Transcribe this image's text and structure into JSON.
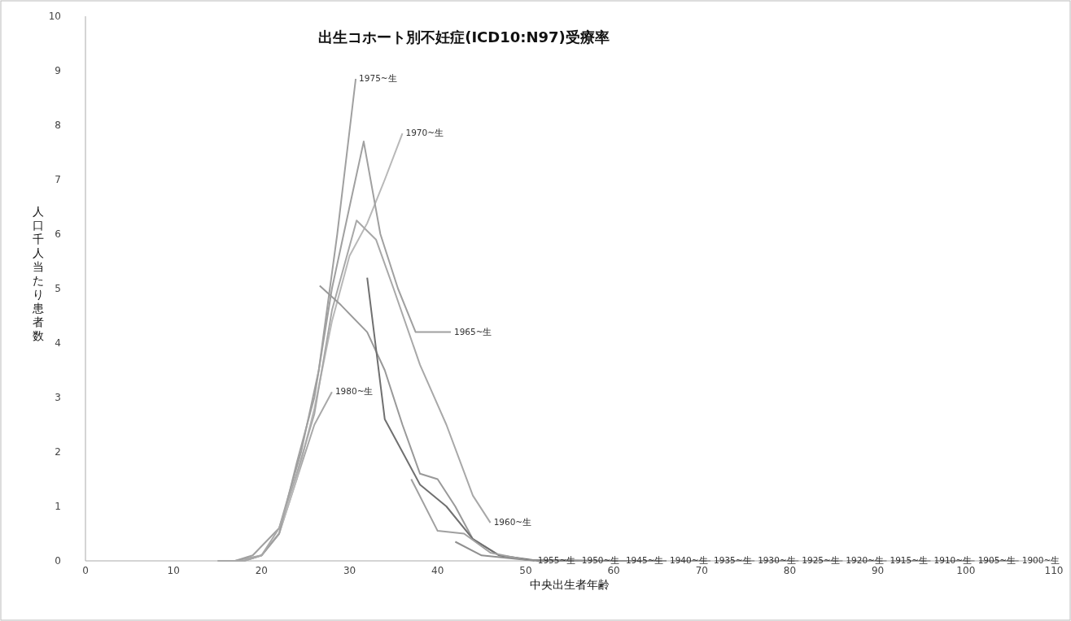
{
  "chart_data": {
    "type": "line",
    "title": "出生コホート別不妊症(ICD10:N97)受療率",
    "xlabel": "中央出生者年齢",
    "ylabel": "人口千人当たり患者数",
    "xlim": [
      0,
      110
    ],
    "xticks": [
      0,
      10,
      20,
      30,
      40,
      50,
      60,
      70,
      80,
      90,
      100,
      110
    ],
    "ylim": [
      0,
      10
    ],
    "yticks": [
      0,
      1,
      2,
      3,
      4,
      5,
      6,
      7,
      8,
      9,
      10
    ],
    "grid": false,
    "legend": false,
    "series": [
      {
        "name": "1980~生",
        "color": "#a8a8a8",
        "x": [
          17,
          20,
          22,
          24,
          26,
          28
        ],
        "values": [
          0,
          0.1,
          0.5,
          1.5,
          2.5,
          3.1
        ]
      },
      {
        "name": "1975~生",
        "color": "#a0a0a0",
        "x": [
          17,
          19,
          22,
          24.5,
          26.5,
          28.6,
          30.7
        ],
        "values": [
          0,
          0.1,
          0.6,
          2,
          3.5,
          6,
          8.85
        ]
      },
      {
        "name": "1970~生",
        "color": "#b8b8b8",
        "x": [
          18,
          20,
          22,
          24,
          26,
          28,
          30,
          32,
          34,
          36
        ],
        "values": [
          0,
          0.1,
          0.5,
          1.5,
          2.8,
          4.4,
          5.6,
          6.2,
          7,
          7.85
        ]
      },
      {
        "name": "1965~生",
        "color": "#a0a0a0",
        "x": [
          16,
          18,
          20,
          22,
          24,
          26,
          28,
          30,
          31.6,
          33.5,
          35.5,
          37.5,
          41.5
        ],
        "values": [
          0,
          0,
          0.1,
          0.5,
          1.8,
          3,
          5,
          6.5,
          7.7,
          6,
          5,
          4.2,
          4.2
        ]
      },
      {
        "name": "1960~生",
        "color": "#a8a8a8",
        "x": [
          15,
          18,
          20,
          22,
          24,
          26,
          28,
          30.8,
          33,
          35,
          38,
          41,
          44,
          46
        ],
        "values": [
          0,
          0,
          0.1,
          0.6,
          1.6,
          2.7,
          4.6,
          6.25,
          5.9,
          5,
          3.6,
          2.5,
          1.2,
          0.7
        ]
      },
      {
        "name": "1955~生",
        "color": "#999999",
        "x": [
          26.6,
          29,
          32,
          34,
          36,
          38,
          40,
          42,
          44,
          47,
          51
        ],
        "values": [
          5.05,
          4.7,
          4.2,
          3.5,
          2.5,
          1.6,
          1.5,
          1,
          0.4,
          0.1,
          0
        ]
      },
      {
        "name": "1950~生",
        "color": "#707070",
        "x": [
          32,
          34,
          36,
          38,
          41,
          44,
          47,
          51.5,
          56
        ],
        "values": [
          5.2,
          2.6,
          2,
          1.4,
          1,
          0.4,
          0.1,
          0,
          0
        ]
      },
      {
        "name": "1945~生",
        "color": "#a0a0a0",
        "x": [
          37,
          40,
          43,
          46,
          50,
          56.5,
          61
        ],
        "values": [
          1.5,
          0.55,
          0.5,
          0.15,
          0.02,
          0,
          0
        ]
      },
      {
        "name": "1940~生",
        "color": "#909090",
        "x": [
          42,
          45,
          50,
          61.5,
          66
        ],
        "values": [
          0.35,
          0.1,
          0.02,
          0,
          0
        ]
      },
      {
        "name": "1935~生",
        "color": "#a0a0a0",
        "x": [
          66.5,
          71
        ],
        "values": [
          0,
          0
        ]
      },
      {
        "name": "1930~生",
        "color": "#a0a0a0",
        "x": [
          71.5,
          76
        ],
        "values": [
          0,
          0
        ]
      },
      {
        "name": "1925~生",
        "color": "#a0a0a0",
        "x": [
          76.5,
          81
        ],
        "values": [
          0,
          0
        ]
      },
      {
        "name": "1920~生",
        "color": "#a0a0a0",
        "x": [
          81.5,
          86
        ],
        "values": [
          0,
          0
        ]
      },
      {
        "name": "1915~生",
        "color": "#a0a0a0",
        "x": [
          86.5,
          91
        ],
        "values": [
          0,
          0
        ]
      },
      {
        "name": "1910~生",
        "color": "#a0a0a0",
        "x": [
          91.5,
          96
        ],
        "values": [
          0,
          0
        ]
      },
      {
        "name": "1905~生",
        "color": "#a0a0a0",
        "x": [
          96.5,
          101
        ],
        "values": [
          0,
          0
        ]
      },
      {
        "name": "1900~生",
        "color": "#a0a0a0",
        "x": [
          101.5,
          106
        ],
        "values": [
          0,
          0
        ]
      }
    ]
  }
}
